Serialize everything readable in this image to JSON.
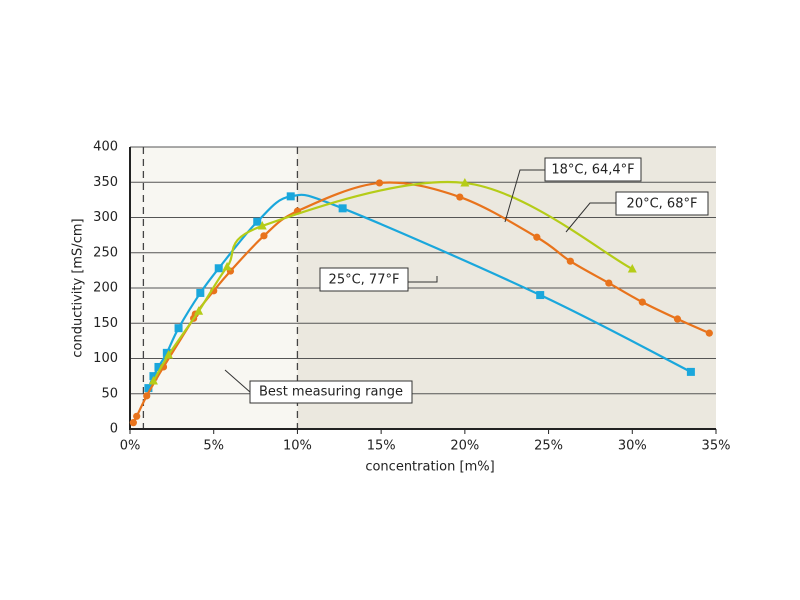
{
  "chart_data": {
    "type": "line",
    "xlabel": "concentration [m%]",
    "ylabel": "conductivity [mS/cm]",
    "xlim": [
      0,
      35
    ],
    "ylim": [
      0,
      400
    ],
    "xticks": [
      {
        "value": 0,
        "label": "0%"
      },
      {
        "value": 5,
        "label": "5%"
      },
      {
        "value": 10,
        "label": "10%"
      },
      {
        "value": 15,
        "label": "15%"
      },
      {
        "value": 20,
        "label": "20%"
      },
      {
        "value": 25,
        "label": "25%"
      },
      {
        "value": 30,
        "label": "30%"
      },
      {
        "value": 35,
        "label": "35%"
      }
    ],
    "yticks": [
      0,
      50,
      100,
      150,
      200,
      250,
      300,
      350,
      400
    ],
    "grid": true,
    "range_annotation": {
      "text": "Best measuring range",
      "x_range": [
        0.8,
        10
      ]
    },
    "series": [
      {
        "name": "25°C, 77°F",
        "color": "#1aa7dc",
        "marker": "square",
        "x": [
          1.1,
          1.4,
          1.7,
          2.2,
          2.9,
          4.2,
          5.3,
          7.6,
          9.6,
          12.7,
          24.5,
          33.5
        ],
        "values": [
          58,
          75,
          88,
          108,
          143,
          193,
          228,
          294,
          330,
          313,
          190,
          81
        ]
      },
      {
        "name": "18°C, 64,4°F",
        "color": "#e8731c",
        "marker": "circle",
        "x": [
          0.2,
          0.4,
          1.0,
          2.0,
          3.8,
          3.9,
          5.0,
          6.0,
          8.0,
          10.0,
          14.9,
          19.7,
          24.3,
          26.3,
          28.6,
          30.6,
          32.7,
          34.6
        ],
        "values": [
          9,
          18,
          47,
          88,
          157,
          163,
          196,
          224,
          274,
          309,
          349,
          329,
          272,
          238,
          207,
          180,
          156,
          136
        ]
      },
      {
        "name": "20°C, 68°F",
        "color": "#b5cc18",
        "marker": "triangle",
        "x": [
          1.4,
          2.3,
          4.1,
          5.8,
          7.9,
          20.0,
          30.0
        ],
        "values": [
          68,
          105,
          167,
          230,
          288,
          349,
          227
        ]
      }
    ]
  }
}
